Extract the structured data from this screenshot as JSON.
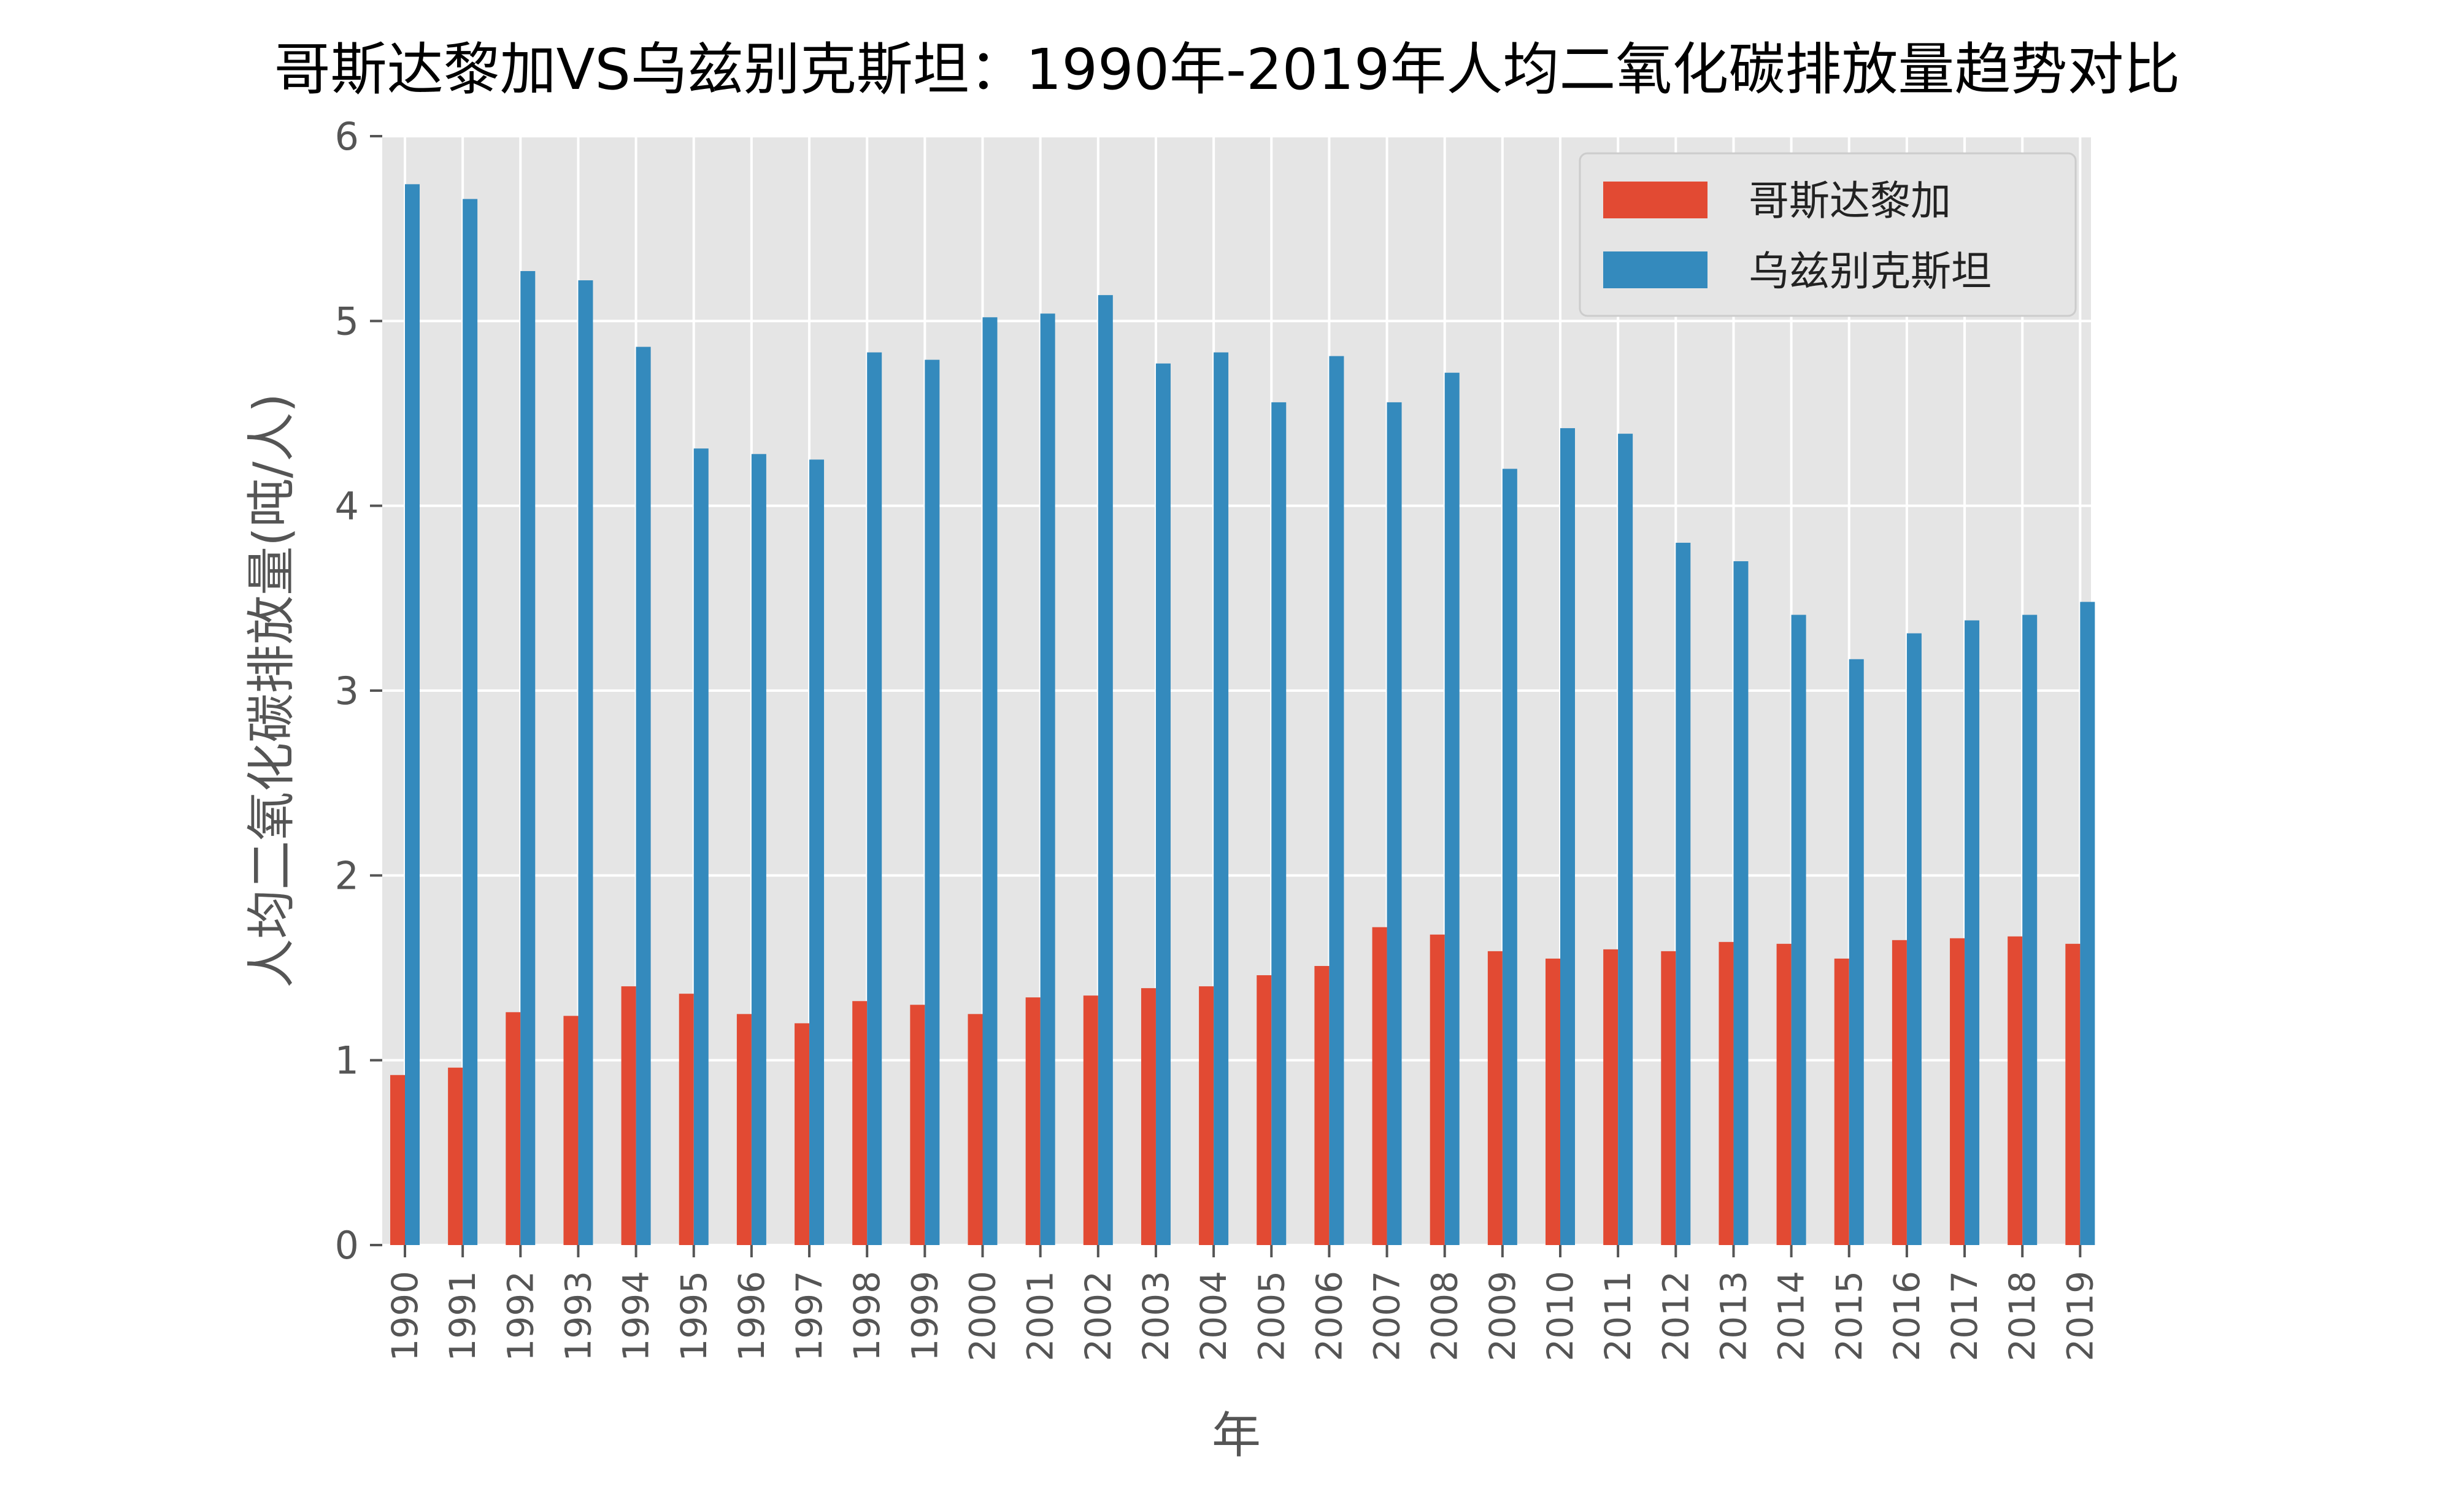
{
  "chart_data": {
    "type": "bar",
    "title": "哥斯达黎加VS乌兹别克斯坦：1990年-2019年人均二氧化碳排放量趋势对比",
    "xlabel": "年",
    "ylabel": "人均二氧化碳排放量(吨/人)",
    "ylim": [
      0,
      6
    ],
    "yticks": [
      "0",
      "1",
      "2",
      "3",
      "4",
      "5",
      "6"
    ],
    "grid": true,
    "legend_position": "top-right",
    "categories": [
      "1990",
      "1991",
      "1992",
      "1993",
      "1994",
      "1995",
      "1996",
      "1997",
      "1998",
      "1999",
      "2000",
      "2001",
      "2002",
      "2003",
      "2004",
      "2005",
      "2006",
      "2007",
      "2008",
      "2009",
      "2010",
      "2011",
      "2012",
      "2013",
      "2014",
      "2015",
      "2016",
      "2017",
      "2018",
      "2019"
    ],
    "series": [
      {
        "name": "哥斯达黎加",
        "color": "#E24A33",
        "values": [
          0.92,
          0.96,
          1.26,
          1.24,
          1.4,
          1.36,
          1.25,
          1.2,
          1.32,
          1.3,
          1.25,
          1.34,
          1.35,
          1.39,
          1.4,
          1.46,
          1.51,
          1.72,
          1.68,
          1.59,
          1.55,
          1.6,
          1.59,
          1.64,
          1.63,
          1.55,
          1.65,
          1.66,
          1.67,
          1.63
        ]
      },
      {
        "name": "乌兹别克斯坦",
        "color": "#348ABD",
        "values": [
          5.74,
          5.66,
          5.27,
          5.22,
          4.86,
          4.31,
          4.28,
          4.25,
          4.83,
          4.79,
          5.02,
          5.04,
          5.14,
          4.77,
          4.83,
          4.56,
          4.81,
          4.56,
          4.72,
          4.2,
          4.42,
          4.39,
          3.8,
          3.7,
          3.41,
          3.17,
          3.31,
          3.38,
          3.41,
          3.48
        ]
      }
    ]
  },
  "colors": {
    "plot_background": "#E5E5E5",
    "grid": "#FFFFFF",
    "tick_text": "#555555"
  }
}
